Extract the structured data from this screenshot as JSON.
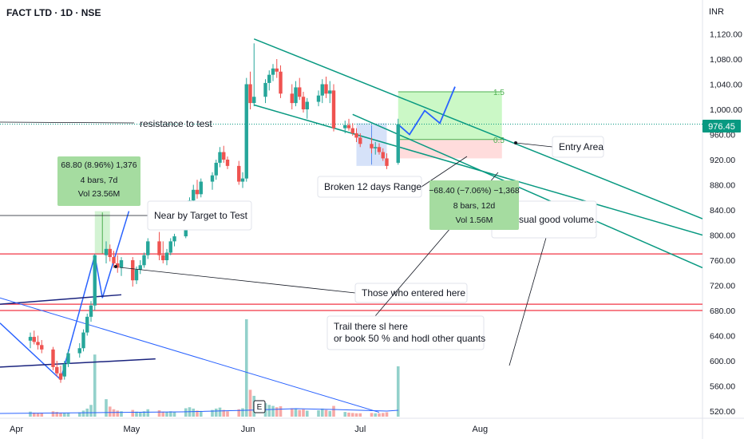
{
  "header": {
    "title": "FACT LTD · 1D · NSE",
    "currency": "INR"
  },
  "price_tag": "976.45",
  "annotations": [
    {
      "id": "resistance",
      "text": "resistance to test"
    },
    {
      "id": "near_target",
      "text": "Near by Target to  Test"
    },
    {
      "id": "broken_range",
      "text": "Broken 12 days Range"
    },
    {
      "id": "entry_area",
      "text": "Entry Area"
    },
    {
      "id": "usual_volume",
      "text": "As Usual good volume."
    },
    {
      "id": "entered_here",
      "text": "Those who entered here"
    },
    {
      "id": "trail",
      "text": "Trail there sl here"
    },
    {
      "id": "book",
      "text": "or book 50 % and hodl other quants"
    }
  ],
  "measure_up": {
    "line1": "68.80 (8.96%) 1,376",
    "line2": "4 bars, 7d",
    "line3": "Vol 23.56M"
  },
  "measure_down": {
    "line1": "−68.40 (−7.06%) −1,368",
    "line2": "8 bars, 12d",
    "line3": "Vol 1.56M"
  },
  "fib_labels": {
    "top": "1.5",
    "mid": "0.5"
  },
  "event_marker": "E",
  "colors": {
    "up": "#26a69a",
    "down": "#ef5350",
    "trend": "#089981",
    "line": "#2962ff",
    "hline": "#f23645",
    "vol_up": "#93d1cb",
    "vol_down": "#f7a9a7"
  },
  "chart_data": {
    "type": "candlestick",
    "title": "FACT LTD · 1D · NSE",
    "ylim": [
      505,
      1140
    ],
    "yticks": [
      "1,120.00",
      "1,080.00",
      "1,040.00",
      "1,000.00",
      "960.00",
      "920.00",
      "880.00",
      "840.00",
      "800.00",
      "760.00",
      "720.00",
      "680.00",
      "640.00",
      "600.00",
      "560.00",
      "520.00"
    ],
    "ytick_values": [
      1120,
      1080,
      1040,
      1000,
      960,
      920,
      880,
      840,
      800,
      760,
      720,
      680,
      640,
      600,
      560,
      520
    ],
    "xticks": [
      "Apr",
      "May",
      "Jun",
      "Jul",
      "Aug"
    ],
    "xtick_days": [
      0,
      30,
      61,
      91,
      122
    ],
    "last_price": 976.45,
    "horizontal_levels": [
      770,
      690,
      680
    ],
    "candles": [
      {
        "d": 0,
        "o": 632,
        "h": 645,
        "l": 620,
        "c": 638
      },
      {
        "d": 1,
        "o": 638,
        "h": 648,
        "l": 626,
        "c": 630
      },
      {
        "d": 2,
        "o": 630,
        "h": 640,
        "l": 618,
        "c": 625
      },
      {
        "d": 3,
        "o": 625,
        "h": 633,
        "l": 612,
        "c": 618
      },
      {
        "d": 6,
        "o": 618,
        "h": 622,
        "l": 585,
        "c": 590
      },
      {
        "d": 7,
        "o": 590,
        "h": 600,
        "l": 575,
        "c": 580
      },
      {
        "d": 8,
        "o": 580,
        "h": 592,
        "l": 565,
        "c": 570
      },
      {
        "d": 9,
        "o": 575,
        "h": 600,
        "l": 570,
        "c": 595
      },
      {
        "d": 10,
        "o": 595,
        "h": 618,
        "l": 590,
        "c": 612
      },
      {
        "d": 13,
        "o": 612,
        "h": 628,
        "l": 605,
        "c": 620
      },
      {
        "d": 14,
        "o": 620,
        "h": 650,
        "l": 615,
        "c": 645
      },
      {
        "d": 15,
        "o": 645,
        "h": 675,
        "l": 640,
        "c": 670
      },
      {
        "d": 16,
        "o": 670,
        "h": 695,
        "l": 662,
        "c": 688
      },
      {
        "d": 17,
        "o": 688,
        "h": 770,
        "l": 680,
        "c": 768
      },
      {
        "d": 20,
        "o": 768,
        "h": 790,
        "l": 755,
        "c": 778
      },
      {
        "d": 21,
        "o": 778,
        "h": 785,
        "l": 758,
        "c": 765
      },
      {
        "d": 22,
        "o": 765,
        "h": 775,
        "l": 748,
        "c": 755
      },
      {
        "d": 23,
        "o": 755,
        "h": 768,
        "l": 740,
        "c": 748
      },
      {
        "d": 24,
        "o": 748,
        "h": 765,
        "l": 735,
        "c": 760
      },
      {
        "d": 27,
        "o": 760,
        "h": 765,
        "l": 718,
        "c": 728
      },
      {
        "d": 28,
        "o": 728,
        "h": 750,
        "l": 722,
        "c": 745
      },
      {
        "d": 29,
        "o": 745,
        "h": 760,
        "l": 738,
        "c": 752
      },
      {
        "d": 30,
        "o": 752,
        "h": 772,
        "l": 748,
        "c": 768
      },
      {
        "d": 31,
        "o": 768,
        "h": 795,
        "l": 762,
        "c": 790
      },
      {
        "d": 34,
        "o": 790,
        "h": 805,
        "l": 760,
        "c": 768
      },
      {
        "d": 35,
        "o": 768,
        "h": 790,
        "l": 755,
        "c": 760
      },
      {
        "d": 36,
        "o": 760,
        "h": 778,
        "l": 752,
        "c": 772
      },
      {
        "d": 37,
        "o": 772,
        "h": 795,
        "l": 768,
        "c": 790
      },
      {
        "d": 38,
        "o": 790,
        "h": 802,
        "l": 782,
        "c": 798
      },
      {
        "d": 41,
        "o": 798,
        "h": 832,
        "l": 795,
        "c": 828
      },
      {
        "d": 42,
        "o": 828,
        "h": 860,
        "l": 822,
        "c": 855
      },
      {
        "d": 43,
        "o": 855,
        "h": 880,
        "l": 848,
        "c": 872
      },
      {
        "d": 44,
        "o": 872,
        "h": 888,
        "l": 858,
        "c": 865
      },
      {
        "d": 45,
        "o": 865,
        "h": 890,
        "l": 860,
        "c": 885
      },
      {
        "d": 48,
        "o": 885,
        "h": 900,
        "l": 872,
        "c": 895
      },
      {
        "d": 49,
        "o": 895,
        "h": 920,
        "l": 888,
        "c": 915
      },
      {
        "d": 50,
        "o": 915,
        "h": 940,
        "l": 908,
        "c": 932
      },
      {
        "d": 51,
        "o": 932,
        "h": 942,
        "l": 915,
        "c": 920
      },
      {
        "d": 52,
        "o": 920,
        "h": 925,
        "l": 905,
        "c": 910
      },
      {
        "d": 55,
        "o": 910,
        "h": 918,
        "l": 880,
        "c": 885
      },
      {
        "d": 56,
        "o": 885,
        "h": 900,
        "l": 875,
        "c": 890
      },
      {
        "d": 57,
        "o": 890,
        "h": 1050,
        "l": 885,
        "c": 1040
      },
      {
        "d": 58,
        "o": 1040,
        "h": 1060,
        "l": 1000,
        "c": 1010
      },
      {
        "d": 59,
        "o": 1010,
        "h": 1105,
        "l": 1005,
        "c": 1020
      },
      {
        "d": 62,
        "o": 1020,
        "h": 1048,
        "l": 1010,
        "c": 1042
      },
      {
        "d": 63,
        "o": 1042,
        "h": 1062,
        "l": 1030,
        "c": 1055
      },
      {
        "d": 64,
        "o": 1055,
        "h": 1072,
        "l": 1045,
        "c": 1065
      },
      {
        "d": 65,
        "o": 1065,
        "h": 1080,
        "l": 1050,
        "c": 1060
      },
      {
        "d": 66,
        "o": 1060,
        "h": 1070,
        "l": 1018,
        "c": 1025
      },
      {
        "d": 69,
        "o": 1025,
        "h": 1040,
        "l": 1000,
        "c": 1010
      },
      {
        "d": 70,
        "o": 1010,
        "h": 1045,
        "l": 1005,
        "c": 1035
      },
      {
        "d": 71,
        "o": 1035,
        "h": 1050,
        "l": 1015,
        "c": 1020
      },
      {
        "d": 72,
        "o": 1020,
        "h": 1028,
        "l": 995,
        "c": 1000
      },
      {
        "d": 73,
        "o": 1000,
        "h": 1018,
        "l": 985,
        "c": 1012
      },
      {
        "d": 76,
        "o": 1012,
        "h": 1030,
        "l": 1005,
        "c": 1022
      },
      {
        "d": 77,
        "o": 1022,
        "h": 1048,
        "l": 1010,
        "c": 1040
      },
      {
        "d": 78,
        "o": 1040,
        "h": 1052,
        "l": 1018,
        "c": 1025
      },
      {
        "d": 79,
        "o": 1025,
        "h": 1045,
        "l": 1010,
        "c": 1030
      },
      {
        "d": 80,
        "o": 1030,
        "h": 1040,
        "l": 965,
        "c": 970
      },
      {
        "d": 83,
        "o": 970,
        "h": 982,
        "l": 962,
        "c": 975
      },
      {
        "d": 84,
        "o": 975,
        "h": 985,
        "l": 966,
        "c": 970
      },
      {
        "d": 85,
        "o": 970,
        "h": 978,
        "l": 958,
        "c": 962
      },
      {
        "d": 86,
        "o": 962,
        "h": 970,
        "l": 948,
        "c": 955
      },
      {
        "d": 87,
        "o": 955,
        "h": 962,
        "l": 940,
        "c": 945
      },
      {
        "d": 90,
        "o": 945,
        "h": 955,
        "l": 930,
        "c": 938
      },
      {
        "d": 91,
        "o": 938,
        "h": 948,
        "l": 928,
        "c": 940
      },
      {
        "d": 92,
        "o": 940,
        "h": 946,
        "l": 928,
        "c": 932
      },
      {
        "d": 93,
        "o": 932,
        "h": 938,
        "l": 918,
        "c": 922
      },
      {
        "d": 94,
        "o": 922,
        "h": 930,
        "l": 905,
        "c": 910
      },
      {
        "d": 97,
        "o": 915,
        "h": 985,
        "l": 912,
        "c": 976.45
      }
    ],
    "volume": [
      {
        "d": 0,
        "v": 1.5,
        "up": true
      },
      {
        "d": 1,
        "v": 1.2,
        "up": false
      },
      {
        "d": 2,
        "v": 1.0,
        "up": false
      },
      {
        "d": 3,
        "v": 1.1,
        "up": false
      },
      {
        "d": 6,
        "v": 1.6,
        "up": false
      },
      {
        "d": 7,
        "v": 1.4,
        "up": false
      },
      {
        "d": 8,
        "v": 1.2,
        "up": false
      },
      {
        "d": 9,
        "v": 1.1,
        "up": true
      },
      {
        "d": 10,
        "v": 1.2,
        "up": true
      },
      {
        "d": 13,
        "v": 1.3,
        "up": true
      },
      {
        "d": 14,
        "v": 1.8,
        "up": true
      },
      {
        "d": 15,
        "v": 2.4,
        "up": true
      },
      {
        "d": 16,
        "v": 3.5,
        "up": true
      },
      {
        "d": 17,
        "v": 18.5,
        "up": true
      },
      {
        "d": 20,
        "v": 5.2,
        "up": true
      },
      {
        "d": 21,
        "v": 3.0,
        "up": false
      },
      {
        "d": 22,
        "v": 2.2,
        "up": false
      },
      {
        "d": 23,
        "v": 1.8,
        "up": false
      },
      {
        "d": 24,
        "v": 1.6,
        "up": true
      },
      {
        "d": 27,
        "v": 2.0,
        "up": false
      },
      {
        "d": 28,
        "v": 1.5,
        "up": true
      },
      {
        "d": 29,
        "v": 1.3,
        "up": true
      },
      {
        "d": 30,
        "v": 1.6,
        "up": true
      },
      {
        "d": 31,
        "v": 2.2,
        "up": true
      },
      {
        "d": 34,
        "v": 1.9,
        "up": false
      },
      {
        "d": 35,
        "v": 1.5,
        "up": false
      },
      {
        "d": 36,
        "v": 1.3,
        "up": true
      },
      {
        "d": 37,
        "v": 1.6,
        "up": true
      },
      {
        "d": 38,
        "v": 1.4,
        "up": true
      },
      {
        "d": 41,
        "v": 2.5,
        "up": true
      },
      {
        "d": 42,
        "v": 2.8,
        "up": true
      },
      {
        "d": 43,
        "v": 2.4,
        "up": true
      },
      {
        "d": 44,
        "v": 1.8,
        "up": false
      },
      {
        "d": 45,
        "v": 1.7,
        "up": true
      },
      {
        "d": 48,
        "v": 2.0,
        "up": true
      },
      {
        "d": 49,
        "v": 2.4,
        "up": true
      },
      {
        "d": 50,
        "v": 2.7,
        "up": true
      },
      {
        "d": 51,
        "v": 2.0,
        "up": false
      },
      {
        "d": 52,
        "v": 1.6,
        "up": false
      },
      {
        "d": 55,
        "v": 2.2,
        "up": false
      },
      {
        "d": 56,
        "v": 2.5,
        "up": true
      },
      {
        "d": 57,
        "v": 29.0,
        "up": true
      },
      {
        "d": 58,
        "v": 8.0,
        "up": false
      },
      {
        "d": 59,
        "v": 6.2,
        "up": true
      },
      {
        "d": 62,
        "v": 4.0,
        "up": true
      },
      {
        "d": 63,
        "v": 3.5,
        "up": true
      },
      {
        "d": 64,
        "v": 3.2,
        "up": true
      },
      {
        "d": 65,
        "v": 2.8,
        "up": false
      },
      {
        "d": 66,
        "v": 3.1,
        "up": false
      },
      {
        "d": 69,
        "v": 2.5,
        "up": false
      },
      {
        "d": 70,
        "v": 2.4,
        "up": true
      },
      {
        "d": 71,
        "v": 2.0,
        "up": false
      },
      {
        "d": 72,
        "v": 2.2,
        "up": false
      },
      {
        "d": 73,
        "v": 1.8,
        "up": true
      },
      {
        "d": 76,
        "v": 1.9,
        "up": true
      },
      {
        "d": 77,
        "v": 2.4,
        "up": true
      },
      {
        "d": 78,
        "v": 2.0,
        "up": false
      },
      {
        "d": 79,
        "v": 1.7,
        "up": true
      },
      {
        "d": 80,
        "v": 3.2,
        "up": false
      },
      {
        "d": 83,
        "v": 1.4,
        "up": true
      },
      {
        "d": 84,
        "v": 1.2,
        "up": false
      },
      {
        "d": 85,
        "v": 1.1,
        "up": false
      },
      {
        "d": 86,
        "v": 1.0,
        "up": false
      },
      {
        "d": 87,
        "v": 1.0,
        "up": false
      },
      {
        "d": 90,
        "v": 1.1,
        "up": false
      },
      {
        "d": 91,
        "v": 1.0,
        "up": true
      },
      {
        "d": 92,
        "v": 1.0,
        "up": false
      },
      {
        "d": 93,
        "v": 1.1,
        "up": false
      },
      {
        "d": 94,
        "v": 1.3,
        "up": false
      },
      {
        "d": 97,
        "v": 15.0,
        "up": true
      }
    ]
  }
}
